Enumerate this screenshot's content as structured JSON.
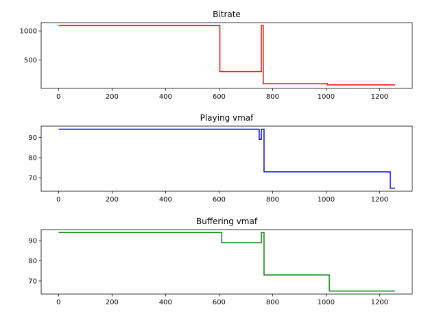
{
  "chart_data": [
    {
      "type": "line",
      "title": "Bitrate",
      "xlabel": "",
      "ylabel": "",
      "xlim": [
        -65,
        1322
      ],
      "ylim": [
        12,
        1143
      ],
      "xticks": [
        0,
        200,
        400,
        600,
        800,
        1000,
        1200
      ],
      "yticks": [
        500,
        1000
      ],
      "color": "#ff0000",
      "series": [
        {
          "x": [
            0,
            603,
            603,
            758,
            758,
            765,
            765,
            1005,
            1005,
            1258
          ],
          "y": [
            1092,
            1092,
            300,
            300,
            1092,
            1092,
            93,
            93,
            73,
            73
          ]
        }
      ]
    },
    {
      "type": "line",
      "title": "Playing vmaf",
      "xlabel": "",
      "ylabel": "",
      "xlim": [
        -65,
        1322
      ],
      "ylim": [
        63.5,
        95.5
      ],
      "xticks": [
        0,
        200,
        400,
        600,
        800,
        1000,
        1200
      ],
      "yticks": [
        70,
        80,
        90
      ],
      "color": "#0000ff",
      "series": [
        {
          "x": [
            0,
            750,
            750,
            758,
            758,
            768,
            768,
            1240,
            1240,
            1258
          ],
          "y": [
            94,
            94,
            89,
            89,
            94,
            94,
            73,
            73,
            65,
            65
          ]
        }
      ]
    },
    {
      "type": "line",
      "title": "Buffering vmaf",
      "xlabel": "",
      "ylabel": "",
      "xlim": [
        -65,
        1322
      ],
      "ylim": [
        63.5,
        95.5
      ],
      "xticks": [
        0,
        200,
        400,
        600,
        800,
        1000,
        1200
      ],
      "yticks": [
        70,
        80,
        90
      ],
      "color": "#008000",
      "series": [
        {
          "x": [
            0,
            610,
            610,
            758,
            758,
            768,
            768,
            1012,
            1012,
            1258
          ],
          "y": [
            94,
            94,
            89,
            89,
            94,
            94,
            73,
            73,
            65,
            65
          ]
        }
      ]
    }
  ]
}
